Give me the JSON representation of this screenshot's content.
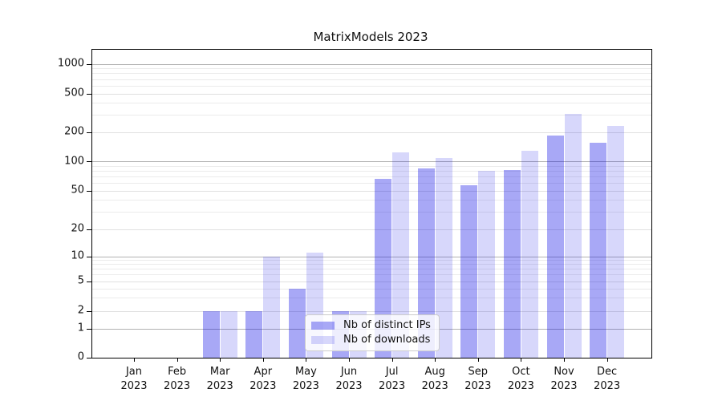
{
  "title": "MatrixModels 2023",
  "colors": {
    "ips_bar": "rgba(0,0,230,0.34)",
    "downloads_bar": "rgba(0,0,230,0.155)",
    "ips_bar_hex": "#a8a8f6",
    "downloads_bar_hex": "#d8d8f8",
    "grid_major": "#b3b3b3",
    "grid_labeled": "#e0e0e0",
    "grid_minor": "#ebebeb",
    "axis": "#000000",
    "text": "#111111"
  },
  "legend": {
    "items": [
      {
        "label": "Nb of distinct IPs",
        "series": "ips"
      },
      {
        "label": "Nb of downloads",
        "series": "downloads"
      }
    ],
    "position": "lower center"
  },
  "chart_data": {
    "type": "bar",
    "title": "MatrixModels 2023",
    "categories": [
      "Jan 2023",
      "Feb 2023",
      "Mar 2023",
      "Apr 2023",
      "May 2023",
      "Jun 2023",
      "Jul 2023",
      "Aug 2023",
      "Sep 2023",
      "Oct 2023",
      "Nov 2023",
      "Dec 2023"
    ],
    "series": [
      {
        "name": "Nb of distinct IPs",
        "values": [
          0,
          0,
          2,
          2,
          4,
          2,
          67,
          85,
          57,
          82,
          185,
          155
        ]
      },
      {
        "name": "Nb of downloads",
        "values": [
          0,
          0,
          2,
          10,
          11,
          2,
          124,
          108,
          80,
          129,
          310,
          235
        ]
      }
    ],
    "xlabel": "",
    "ylabel": "",
    "yscale": "symlog (logarithmic above 1, linear 0-1)",
    "y_ticks": [
      0,
      1,
      2,
      5,
      10,
      20,
      50,
      100,
      200,
      500,
      1000
    ],
    "y_minor_gridlines": [
      3,
      4,
      6,
      7,
      8,
      9,
      30,
      40,
      60,
      70,
      80,
      90,
      300,
      400,
      600,
      700,
      800,
      900
    ],
    "ylim": [
      0,
      1400
    ],
    "grid": true,
    "legend_position": "lower center"
  }
}
